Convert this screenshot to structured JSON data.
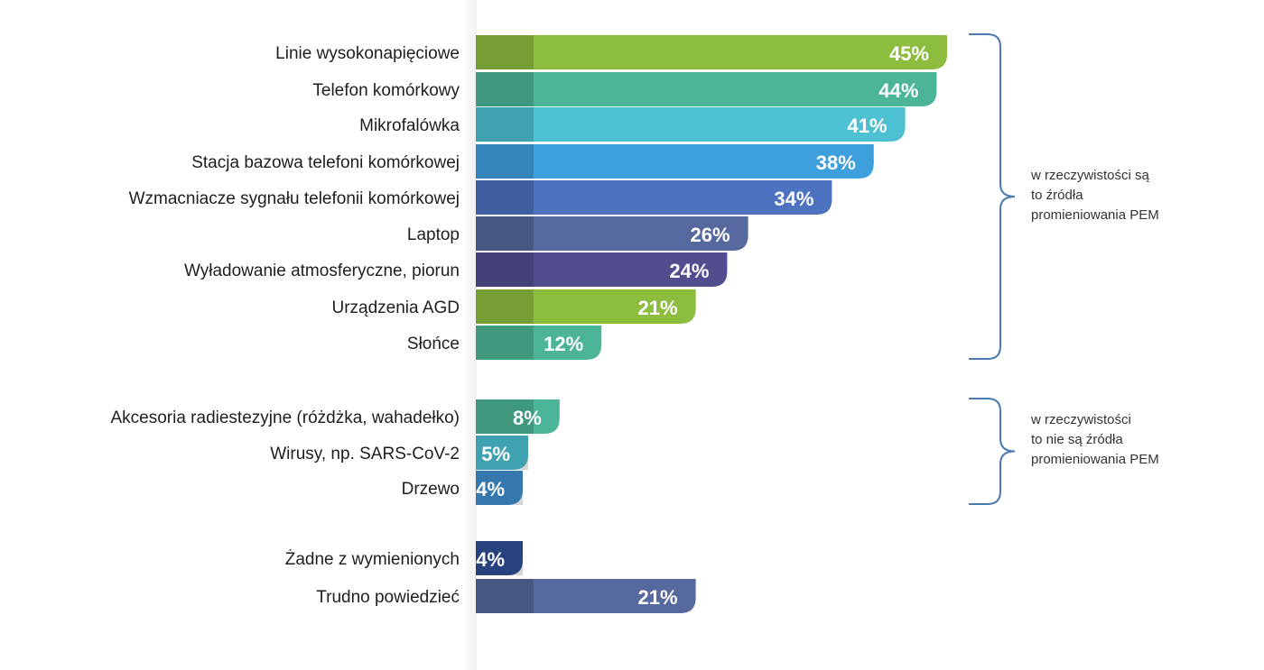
{
  "chart_data": {
    "type": "bar",
    "orientation": "horizontal",
    "categories": [
      "Linie wysokonapięciowe",
      "Telefon komórkowy",
      "Mikrofalówka",
      "Stacja bazowa telefoni komórkowej",
      "Wzmacniacze sygnału telefonii komórkowej",
      "Laptop",
      "Wyładowanie atmosferyczne, piorun",
      "Urządzenia AGD",
      "Słońce",
      "Akcesoria radiestezyjne (różdżka, wahadełko)",
      "Wirusy, np. SARS-CoV-2",
      "Drzewo",
      "Żadne z wymienionych",
      "Trudno powiedzieć"
    ],
    "values": [
      45,
      44,
      41,
      38,
      34,
      26,
      24,
      21,
      12,
      8,
      5,
      4,
      4,
      21
    ],
    "value_labels": [
      "45%",
      "44%",
      "41%",
      "38%",
      "34%",
      "26%",
      "24%",
      "21%",
      "12%",
      "8%",
      "5%",
      "4%",
      "4%",
      "21%"
    ],
    "unit": "%",
    "bar_colors": [
      "#8dbd3f",
      "#4db597",
      "#4dc0d2",
      "#3e9fdd",
      "#4d72bf",
      "#56699f",
      "#524d8f",
      "#8dbd3f",
      "#4db597",
      "#4db597",
      "#4dc0d2",
      "#3e8fd0",
      "#2f4f95",
      "#56699f"
    ],
    "groups": [
      {
        "label_lines": [
          "w rzeczywistości są",
          "to źródła",
          "promieniowania PEM"
        ],
        "first": 0,
        "last": 8
      },
      {
        "label_lines": [
          "w rzeczywistości",
          "to nie są źródła",
          "promieniowania PEM"
        ],
        "first": 9,
        "last": 11
      }
    ],
    "bracket_color": "#4a7ab0",
    "title": "",
    "xlabel": "",
    "ylabel": "",
    "grid": false,
    "legend": false
  }
}
